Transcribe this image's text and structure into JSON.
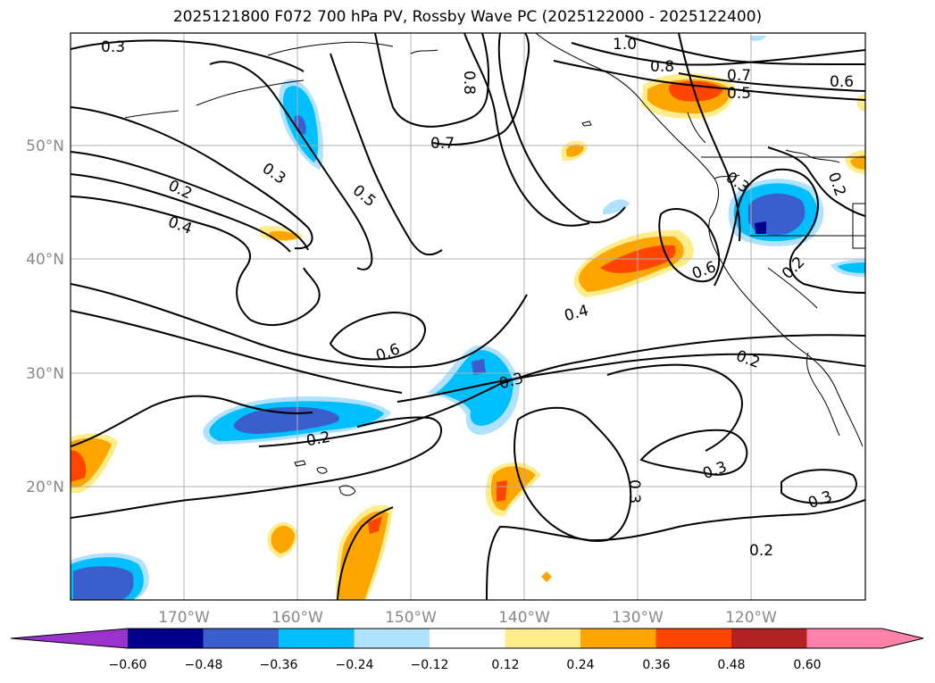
{
  "title": "2025121800 F072 700 hPa PV, Rossby Wave PC (2025122000 - 2025122400)",
  "latitude_labels": [
    "50°N",
    "40°N",
    "30°N",
    "20°N"
  ],
  "longitude_labels": [
    "170°W",
    "160°W",
    "150°W",
    "140°W",
    "130°W",
    "120°W"
  ],
  "colorbar": {
    "ticks": [
      "−0.60",
      "−0.48",
      "−0.36",
      "−0.24",
      "−0.12",
      "0.12",
      "0.24",
      "0.36",
      "0.48",
      "0.60"
    ],
    "colors": [
      "#9a32cd",
      "#00008b",
      "#3a5fcd",
      "#00bfff",
      "#b0e2ff",
      "#ffffff",
      "#ffec8b",
      "#ffa500",
      "#ff4500",
      "#b22222",
      "#ff82ab",
      "#ff82ab"
    ]
  },
  "contour_labels": [
    "0.3",
    "0.8",
    "1.0",
    "0.8",
    "0.7",
    "0.5",
    "0.6",
    "0.7",
    "0.3",
    "0.2",
    "0.4",
    "0.5",
    "0.3",
    "0.2",
    "0.6",
    "0.2",
    "0.4",
    "0.6",
    "0.3",
    "0.2",
    "0.2",
    "0.3",
    "0.3",
    "0.3",
    "0.2"
  ],
  "map_extent": {
    "lon_min": -180,
    "lon_max": -110,
    "lat_min": 10,
    "lat_max": 60
  }
}
